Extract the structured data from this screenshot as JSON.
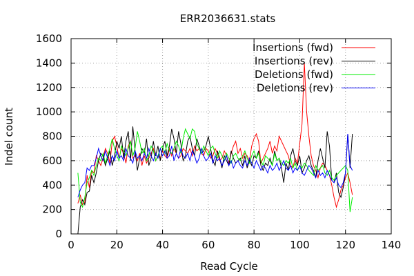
{
  "chart_data": {
    "type": "line",
    "title": "ERR2036631.stats",
    "xlabel": "Read Cycle",
    "ylabel": "Indel count",
    "xlim": [
      0,
      140
    ],
    "ylim": [
      0,
      1600
    ],
    "xticks": [
      0,
      20,
      40,
      60,
      80,
      100,
      120,
      140
    ],
    "yticks": [
      0,
      200,
      400,
      600,
      800,
      1000,
      1200,
      1400,
      1600
    ],
    "grid": true,
    "legend": "top-right",
    "series": [
      {
        "name": "Insertions (fwd)",
        "color": "#ff0000",
        "x": [
          3,
          4,
          5,
          6,
          7,
          8,
          9,
          10,
          11,
          12,
          13,
          14,
          15,
          16,
          17,
          18,
          19,
          20,
          21,
          22,
          23,
          24,
          25,
          26,
          27,
          28,
          29,
          30,
          31,
          32,
          33,
          34,
          35,
          36,
          37,
          38,
          39,
          40,
          41,
          42,
          43,
          44,
          45,
          46,
          47,
          48,
          49,
          50,
          51,
          52,
          53,
          54,
          55,
          56,
          57,
          58,
          59,
          60,
          61,
          62,
          63,
          64,
          65,
          66,
          67,
          68,
          69,
          70,
          71,
          72,
          73,
          74,
          75,
          76,
          77,
          78,
          79,
          80,
          81,
          82,
          83,
          84,
          85,
          86,
          87,
          88,
          89,
          90,
          91,
          92,
          93,
          94,
          95,
          96,
          97,
          98,
          99,
          100,
          101,
          102,
          103,
          104,
          105,
          106,
          107,
          108,
          109,
          110,
          111,
          112,
          113,
          114,
          115,
          116,
          117,
          118,
          119,
          120,
          121,
          122,
          123
        ],
        "y": [
          250,
          320,
          240,
          260,
          480,
          380,
          520,
          500,
          640,
          600,
          560,
          620,
          700,
          660,
          580,
          760,
          800,
          720,
          620,
          700,
          660,
          580,
          720,
          760,
          620,
          640,
          600,
          660,
          560,
          640,
          580,
          620,
          660,
          700,
          600,
          640,
          620,
          680,
          640,
          620,
          700,
          640,
          700,
          660,
          620,
          640,
          700,
          680,
          660,
          700,
          640,
          720,
          680,
          700,
          660,
          640,
          700,
          680,
          620,
          640,
          700,
          660,
          600,
          620,
          680,
          640,
          580,
          660,
          720,
          760,
          660,
          700,
          620,
          660,
          640,
          600,
          720,
          780,
          820,
          760,
          580,
          620,
          660,
          700,
          760,
          660,
          720,
          680,
          800,
          760,
          720,
          680,
          640,
          560,
          540,
          620,
          580,
          740,
          900,
          1400,
          1000,
          800,
          640,
          560,
          520,
          460,
          540,
          580,
          560,
          520,
          480,
          400,
          300,
          220,
          280,
          360,
          400,
          460,
          500,
          420,
          320
        ],
        "peak_note": ""
      },
      {
        "name": "Insertions (rev)",
        "color": "#000000",
        "x": [
          3,
          4,
          5,
          6,
          7,
          8,
          9,
          10,
          11,
          12,
          13,
          14,
          15,
          16,
          17,
          18,
          19,
          20,
          21,
          22,
          23,
          24,
          25,
          26,
          27,
          28,
          29,
          30,
          31,
          32,
          33,
          34,
          35,
          36,
          37,
          38,
          39,
          40,
          41,
          42,
          43,
          44,
          45,
          46,
          47,
          48,
          49,
          50,
          51,
          52,
          53,
          54,
          55,
          56,
          57,
          58,
          59,
          60,
          61,
          62,
          63,
          64,
          65,
          66,
          67,
          68,
          69,
          70,
          71,
          72,
          73,
          74,
          75,
          76,
          77,
          78,
          79,
          80,
          81,
          82,
          83,
          84,
          85,
          86,
          87,
          88,
          89,
          90,
          91,
          92,
          93,
          94,
          95,
          96,
          97,
          98,
          99,
          100,
          101,
          102,
          103,
          104,
          105,
          106,
          107,
          108,
          109,
          110,
          111,
          112,
          113,
          114,
          115,
          116,
          117,
          118,
          119,
          120,
          121,
          122,
          123
        ],
        "y": [
          0,
          220,
          280,
          240,
          340,
          350,
          480,
          420,
          500,
          600,
          660,
          640,
          560,
          620,
          680,
          560,
          640,
          760,
          700,
          800,
          620,
          760,
          840,
          600,
          880,
          680,
          520,
          620,
          700,
          660,
          780,
          560,
          620,
          760,
          640,
          720,
          600,
          700,
          760,
          640,
          720,
          860,
          780,
          660,
          840,
          740,
          600,
          640,
          760,
          800,
          700,
          640,
          780,
          720,
          660,
          680,
          720,
          800,
          700,
          600,
          560,
          680,
          620,
          540,
          640,
          600,
          560,
          680,
          620,
          580,
          600,
          620,
          560,
          640,
          540,
          600,
          560,
          640,
          620,
          680,
          560,
          520,
          580,
          560,
          620,
          560,
          680,
          600,
          620,
          540,
          420,
          580,
          520,
          640,
          700,
          600,
          560,
          640,
          500,
          540,
          600,
          640,
          560,
          520,
          460,
          600,
          700,
          620,
          540,
          840,
          720,
          440,
          420,
          500,
          340,
          300,
          380,
          500,
          820,
          540,
          820
        ]
      },
      {
        "name": "Deletions (fwd)",
        "color": "#00ee00",
        "x": [
          3,
          4,
          5,
          6,
          7,
          8,
          9,
          10,
          11,
          12,
          13,
          14,
          15,
          16,
          17,
          18,
          19,
          20,
          21,
          22,
          23,
          24,
          25,
          26,
          27,
          28,
          29,
          30,
          31,
          32,
          33,
          34,
          35,
          36,
          37,
          38,
          39,
          40,
          41,
          42,
          43,
          44,
          45,
          46,
          47,
          48,
          49,
          50,
          51,
          52,
          53,
          54,
          55,
          56,
          57,
          58,
          59,
          60,
          61,
          62,
          63,
          64,
          65,
          66,
          67,
          68,
          69,
          70,
          71,
          72,
          73,
          74,
          75,
          76,
          77,
          78,
          79,
          80,
          81,
          82,
          83,
          84,
          85,
          86,
          87,
          88,
          89,
          90,
          91,
          92,
          93,
          94,
          95,
          96,
          97,
          98,
          99,
          100,
          101,
          102,
          103,
          104,
          105,
          106,
          107,
          108,
          109,
          110,
          111,
          112,
          113,
          114,
          115,
          116,
          117,
          118,
          119,
          120,
          121,
          122,
          123
        ],
        "y": [
          500,
          260,
          220,
          300,
          420,
          460,
          520,
          480,
          560,
          620,
          600,
          660,
          580,
          640,
          700,
          780,
          700,
          640,
          600,
          720,
          680,
          640,
          700,
          760,
          640,
          700,
          840,
          760,
          660,
          700,
          600,
          640,
          720,
          680,
          600,
          640,
          700,
          720,
          660,
          740,
          680,
          660,
          700,
          760,
          720,
          660,
          780,
          860,
          820,
          780,
          860,
          840,
          740,
          700,
          660,
          720,
          680,
          640,
          700,
          720,
          660,
          620,
          680,
          640,
          600,
          660,
          620,
          580,
          640,
          660,
          620,
          600,
          640,
          680,
          620,
          580,
          640,
          680,
          620,
          660,
          600,
          560,
          640,
          620,
          600,
          560,
          660,
          600,
          620,
          580,
          560,
          600,
          580,
          620,
          540,
          580,
          520,
          560,
          540,
          580,
          560,
          520,
          500,
          480,
          560,
          520,
          540,
          560,
          500,
          480,
          520,
          460,
          440,
          480,
          500,
          520,
          540,
          560,
          520,
          180,
          300
        ]
      },
      {
        "name": "Deletions (rev)",
        "color": "#0000ff",
        "x": [
          3,
          4,
          5,
          6,
          7,
          8,
          9,
          10,
          11,
          12,
          13,
          14,
          15,
          16,
          17,
          18,
          19,
          20,
          21,
          22,
          23,
          24,
          25,
          26,
          27,
          28,
          29,
          30,
          31,
          32,
          33,
          34,
          35,
          36,
          37,
          38,
          39,
          40,
          41,
          42,
          43,
          44,
          45,
          46,
          47,
          48,
          49,
          50,
          51,
          52,
          53,
          54,
          55,
          56,
          57,
          58,
          59,
          60,
          61,
          62,
          63,
          64,
          65,
          66,
          67,
          68,
          69,
          70,
          71,
          72,
          73,
          74,
          75,
          76,
          77,
          78,
          79,
          80,
          81,
          82,
          83,
          84,
          85,
          86,
          87,
          88,
          89,
          90,
          91,
          92,
          93,
          94,
          95,
          96,
          97,
          98,
          99,
          100,
          101,
          102,
          103,
          104,
          105,
          106,
          107,
          108,
          109,
          110,
          111,
          112,
          113,
          114,
          115,
          116,
          117,
          118,
          119,
          120,
          121,
          122,
          123
        ],
        "y": [
          300,
          360,
          400,
          420,
          540,
          520,
          560,
          560,
          620,
          700,
          640,
          600,
          680,
          620,
          560,
          640,
          600,
          680,
          620,
          640,
          600,
          700,
          640,
          620,
          580,
          680,
          620,
          640,
          600,
          660,
          620,
          700,
          640,
          600,
          660,
          620,
          700,
          640,
          680,
          620,
          640,
          720,
          600,
          660,
          620,
          700,
          640,
          620,
          660,
          600,
          680,
          640,
          580,
          620,
          700,
          640,
          600,
          620,
          660,
          580,
          640,
          600,
          620,
          560,
          600,
          640,
          560,
          600,
          540,
          580,
          600,
          560,
          540,
          600,
          560,
          620,
          580,
          540,
          600,
          560,
          520,
          560,
          540,
          500,
          560,
          520,
          540,
          580,
          520,
          560,
          600,
          540,
          520,
          560,
          500,
          540,
          520,
          560,
          500,
          480,
          520,
          560,
          540,
          500,
          460,
          520,
          480,
          500,
          460,
          520,
          480,
          440,
          420,
          460,
          400,
          380,
          420,
          500,
          820,
          560,
          520
        ]
      }
    ]
  }
}
